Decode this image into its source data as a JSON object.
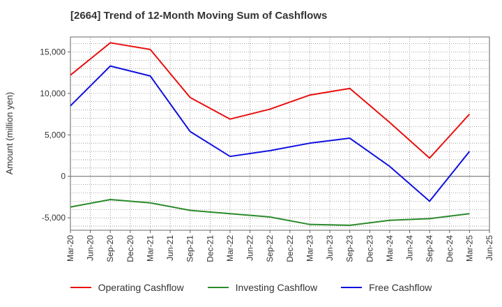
{
  "chart_data": {
    "type": "line",
    "title": "[2664]  Trend of 12-Month Moving Sum of Cashflows",
    "ylabel": "Amount (million yen)",
    "xlabel": "",
    "ylim": [
      -6500,
      16800
    ],
    "yticks": [
      -5000,
      0,
      5000,
      10000,
      15000
    ],
    "ytick_labels": [
      "-5,000",
      "0",
      "5,000",
      "10,000",
      "15,000"
    ],
    "x_tick_labels": [
      "Mar-20",
      "Jun-20",
      "Sep-20",
      "Dec-20",
      "Mar-21",
      "Jun-21",
      "Sep-21",
      "Dec-21",
      "Mar-22",
      "Jun-22",
      "Sep-22",
      "Dec-22",
      "Mar-23",
      "Jun-23",
      "Sep-23",
      "Dec-23",
      "Mar-24",
      "Jun-24",
      "Sep-24",
      "Dec-24",
      "Mar-25",
      "Jun-25"
    ],
    "x": [
      "Mar-20",
      "Sep-20",
      "Mar-21",
      "Sep-21",
      "Mar-22",
      "Sep-22",
      "Mar-23",
      "Sep-23",
      "Mar-24",
      "Sep-24",
      "Mar-25"
    ],
    "grid": true,
    "legend_position": "bottom",
    "series": [
      {
        "name": "Operating Cashflow",
        "color": "#e8100f",
        "values": [
          12200,
          16100,
          15300,
          9500,
          6900,
          8100,
          9800,
          10600,
          6500,
          2200,
          7500
        ]
      },
      {
        "name": "Investing Cashflow",
        "color": "#2a8a2a",
        "values": [
          -3700,
          -2800,
          -3200,
          -4100,
          -4500,
          -4900,
          -5800,
          -5900,
          -5300,
          -5100,
          -4500
        ]
      },
      {
        "name": "Free Cashflow",
        "color": "#1010e0",
        "values": [
          8500,
          13300,
          12100,
          5400,
          2400,
          3100,
          4000,
          4600,
          1200,
          -3000,
          3000
        ]
      }
    ]
  }
}
